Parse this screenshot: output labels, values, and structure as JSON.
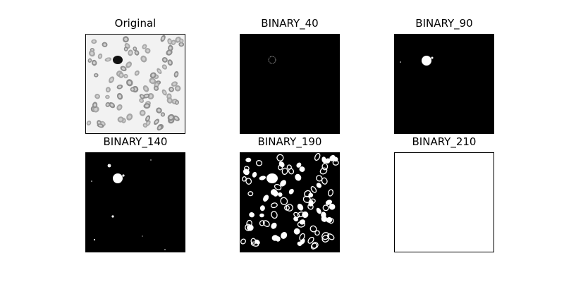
{
  "figure": {
    "panels": [
      {
        "key": "original",
        "title": "Original"
      },
      {
        "key": "binary_40",
        "title": "BINARY_40"
      },
      {
        "key": "binary_90",
        "title": "BINARY_90"
      },
      {
        "key": "binary_140",
        "title": "BINARY_140"
      },
      {
        "key": "binary_190",
        "title": "BINARY_190"
      },
      {
        "key": "binary_210",
        "title": "BINARY_210"
      }
    ]
  }
}
